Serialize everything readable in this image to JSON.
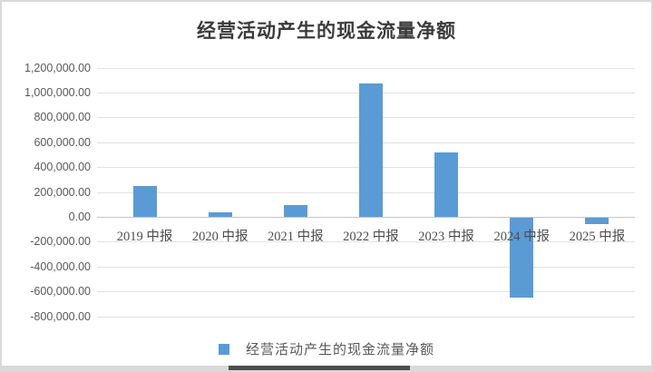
{
  "page": {
    "background": "#ffffff",
    "frame_border_color": "#d9d9d9",
    "bottom_strip_color": "#d9d9d9",
    "bottom_strip_dark_color": "#4d4d4d"
  },
  "chart_data": {
    "type": "bar",
    "title": "经营活动产生的现金流量净额",
    "categories": [
      "2019 中报",
      "2020 中报",
      "2021 中报",
      "2022 中报",
      "2023 中报",
      "2024 中报",
      "2025 中报"
    ],
    "series": [
      {
        "name": "经营活动产生的现金流量净额",
        "values": [
          245000,
          35000,
          95000,
          1075000,
          520000,
          -640000,
          -50000
        ]
      }
    ],
    "xlabel": "",
    "ylabel": "",
    "ylim": [
      -800000,
      1200000
    ],
    "y_tick_step": 200000,
    "y_tick_labels": [
      "1,200,000.00",
      "1,000,000.00",
      "800,000.00",
      "600,000.00",
      "400,000.00",
      "200,000.00",
      "0.00",
      "-200,000.00",
      "-400,000.00",
      "-600,000.00",
      "-800,000.00"
    ],
    "y_tick_values": [
      1200000,
      1000000,
      800000,
      600000,
      400000,
      200000,
      0,
      -200000,
      -400000,
      -600000,
      -800000
    ],
    "bar_color": "#5B9BD5",
    "grid": true,
    "gridline_color": "#e2e2e2",
    "axis_line_color": "#c6c6c6",
    "text_color": "#595959",
    "title_color": "#3b3b3b",
    "legend_position": "bottom",
    "legend_label": "经营活动产生的现金流量净额"
  }
}
